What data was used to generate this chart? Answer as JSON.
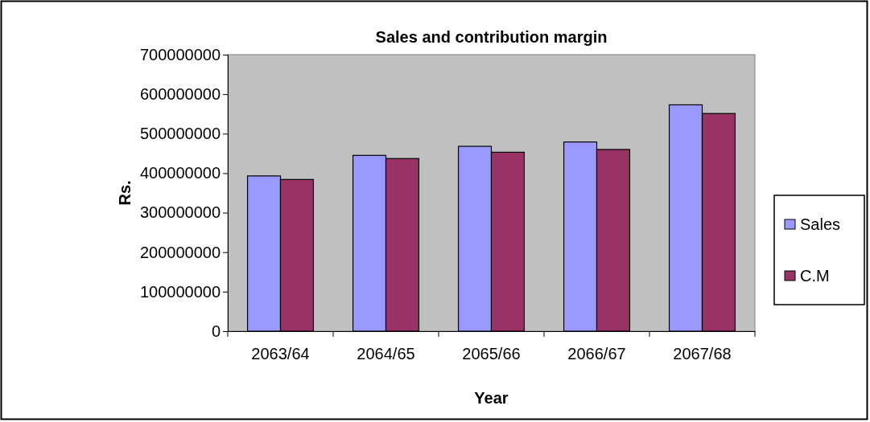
{
  "chart_data": {
    "type": "bar",
    "title": "Sales and contribution margin",
    "xlabel": "Year",
    "ylabel": "Rs.",
    "categories": [
      "2063/64",
      "2064/65",
      "2065/66",
      "2066/67",
      "2067/68"
    ],
    "series": [
      {
        "name": "Sales",
        "color": "#9999ff",
        "values": [
          393000000,
          445000000,
          468000000,
          479000000,
          573000000
        ]
      },
      {
        "name": "C.M",
        "color": "#993366",
        "values": [
          384000000,
          437000000,
          453000000,
          460000000,
          551000000
        ]
      }
    ],
    "ylim": [
      0,
      700000000
    ],
    "yticks": [
      0,
      100000000,
      200000000,
      300000000,
      400000000,
      500000000,
      600000000,
      700000000
    ],
    "grid": false,
    "legend": "right"
  }
}
